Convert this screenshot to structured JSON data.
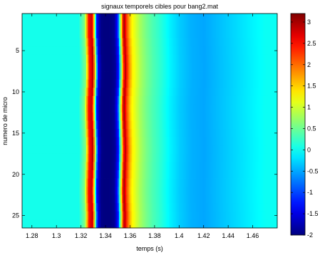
{
  "chart_data": {
    "type": "heatmap",
    "title": "signaux temporels cibles pour bang2.mat",
    "xlabel": "temps (s)",
    "ylabel": "numero de micro",
    "xlim": [
      1.272,
      1.48
    ],
    "ylim": [
      0.5,
      26.5
    ],
    "y_reversed": true,
    "x_ticks": [
      1.28,
      1.3,
      1.32,
      1.34,
      1.36,
      1.38,
      1.4,
      1.42,
      1.44,
      1.46
    ],
    "x_tick_labels": [
      "1.28",
      "1.3",
      "1.32",
      "1.34",
      "1.36",
      "1.38",
      "1.4",
      "1.42",
      "1.44",
      "1.46"
    ],
    "y_ticks": [
      5,
      10,
      15,
      20,
      25
    ],
    "y_tick_labels": [
      "5",
      "10",
      "15",
      "20",
      "25"
    ],
    "colorbar": {
      "colormap": "jet",
      "clim": [
        -2,
        3.2
      ],
      "ticks": [
        3,
        2.5,
        2,
        1.5,
        1,
        0.5,
        0,
        -0.5,
        -1,
        -1.5,
        -2
      ],
      "tick_labels": [
        "3",
        "2.5",
        "2",
        "1.5",
        "1",
        "0.5",
        "0",
        "-0.5",
        "-1",
        "-1.5",
        "-2"
      ]
    },
    "profile_time_s": [
      1.272,
      1.318,
      1.323,
      1.326,
      1.329,
      1.331,
      1.333,
      1.336,
      1.339,
      1.343,
      1.347,
      1.35,
      1.353,
      1.355,
      1.358,
      1.361,
      1.364,
      1.368,
      1.373,
      1.378,
      1.385,
      1.392,
      1.4,
      1.41,
      1.42,
      1.43,
      1.44,
      1.45,
      1.46,
      1.47,
      1.48
    ],
    "profile_value": [
      0.05,
      0.05,
      0.6,
      2.4,
      2.9,
      1.0,
      -1.3,
      -1.95,
      -2.0,
      -2.0,
      -1.9,
      -1.2,
      1.5,
      3.0,
      2.0,
      1.35,
      1.1,
      0.8,
      0.55,
      0.35,
      0.15,
      -0.1,
      -0.3,
      -0.45,
      -0.5,
      -0.4,
      -0.3,
      -0.2,
      -0.1,
      0.0,
      0.0
    ],
    "row_time_shift_ms": [
      0,
      0,
      0,
      0.3,
      0.5,
      0.7,
      0.8,
      0.8,
      0.6,
      0.3,
      0,
      -0.1,
      0,
      0.2,
      0.4,
      0.6,
      0.7,
      0.6,
      0.4,
      0.2,
      0,
      -0.1,
      0,
      0.2,
      0.4,
      0.3
    ]
  }
}
